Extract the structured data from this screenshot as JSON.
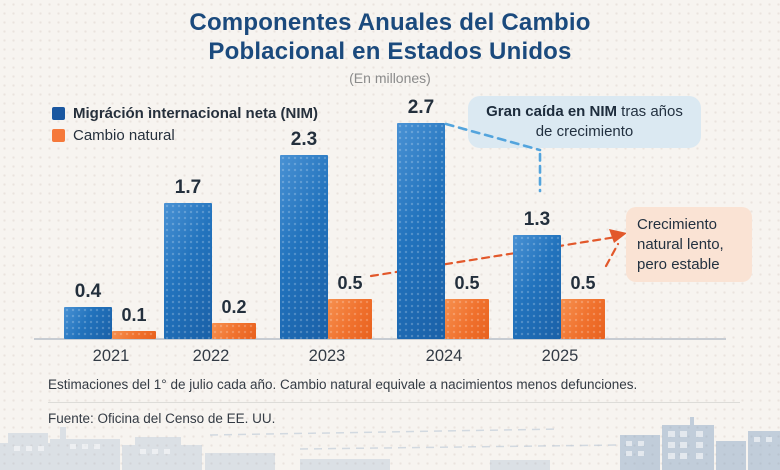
{
  "header": {
    "title_line1": "Componentes Anuales del Cambio",
    "title_line2": "Poblacional en Estados Unidos",
    "subtitle": "(En millones)"
  },
  "legend": {
    "items": [
      {
        "label": "Migráción ìnternacional neta (NIM)",
        "color": "#1a57a0"
      },
      {
        "label": "Cambio natural",
        "color": "#f5793b"
      }
    ]
  },
  "chart_data": {
    "type": "bar",
    "title": "Componentes Anuales del Cambio Poblacional en Estados Unidos",
    "subtitle": "(En millones)",
    "categories": [
      "2021",
      "2022",
      "2023",
      "2024",
      "2025"
    ],
    "series": [
      {
        "name": "Migráción ìnternacional neta (NIM)",
        "color": "#2273bd",
        "values": [
          0.4,
          1.7,
          2.3,
          2.7,
          1.3
        ]
      },
      {
        "name": "Cambio natural",
        "color": "#f0712d",
        "values": [
          0.1,
          0.2,
          0.5,
          0.5,
          0.5
        ]
      }
    ],
    "ylim": [
      0,
      3
    ],
    "grid": false,
    "legend_position": "top-left",
    "value_labels": true,
    "annotations": [
      {
        "text_bold": "Gran caída en NIM",
        "text_rest": " tras años de crecimiento",
        "target": "NIM 2025",
        "style": "blue dashed connector"
      },
      {
        "text": "Crecimiento natural lento, pero estable",
        "target": "Cambio natural 2023–2025",
        "style": "orange dashed arrow"
      }
    ]
  },
  "annotations": {
    "nim_callout_bold": "Gran caída en NIM",
    "nim_callout_rest": " tras años de crecimiento",
    "natural_callout": "Crecimiento natural lento, pero estable"
  },
  "footer": {
    "note": "Estimaciones del 1° de julio cada año. Cambio natural equivale a nacimientos menos defunciones.",
    "source": "Fuente: Oficina del Censo de EE. UU."
  },
  "colors": {
    "background": "#f7f4f0",
    "title": "#1b4a7d",
    "bar_nim": "#2273bd",
    "bar_natural": "#f0712d",
    "callout_nim_bg": "#dbe9f2",
    "callout_natural_bg": "#fae3d4",
    "connector_blue": "#53a4dd",
    "connector_orange": "#e2582b",
    "axis": "#c7ccd2"
  }
}
